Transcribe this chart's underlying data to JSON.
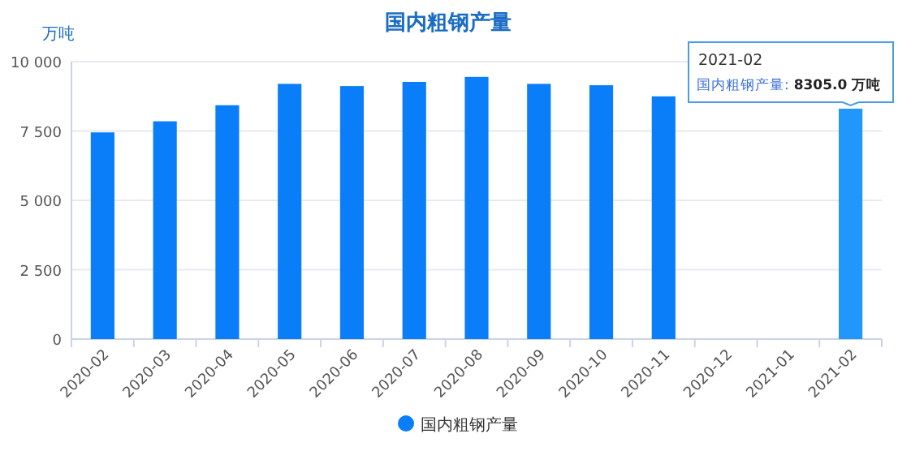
{
  "chart_data": {
    "type": "bar",
    "title": "国内粗钢产量",
    "ylabel": "万吨",
    "categories": [
      "2020-02",
      "2020-03",
      "2020-04",
      "2020-05",
      "2020-06",
      "2020-07",
      "2020-08",
      "2020-09",
      "2020-10",
      "2020-11",
      "2020-12",
      "2021-01",
      "2021-02"
    ],
    "series": [
      {
        "name": "国内粗钢产量",
        "color": "#0a7ef9",
        "colors": [
          "#0a7ef9",
          "#0a7ef9",
          "#0a7ef9",
          "#0a7ef9",
          "#0a7ef9",
          "#0a7ef9",
          "#0a7ef9",
          "#0a7ef9",
          "#0a7ef9",
          "#0a7ef9",
          null,
          null,
          "#2196fb"
        ],
        "values": [
          7450,
          7850,
          8430,
          9200,
          9120,
          9270,
          9450,
          9200,
          9150,
          8750,
          null,
          null,
          8305
        ]
      }
    ],
    "ylim": [
      0,
      10000
    ],
    "yticks": [
      0,
      {
        "value": 2500,
        "label": "2 500"
      },
      {
        "value": 5000,
        "label": "5 000"
      },
      {
        "value": 7500,
        "label": "7 500"
      },
      {
        "value": 10000,
        "label": "10 000"
      }
    ],
    "grid": "y",
    "legend": "bottom",
    "annotations": [
      {
        "text": "2021-02\n国内粗钢产量: 8305.0 万吨",
        "x": "2021-02",
        "y": 8305
      }
    ]
  }
}
